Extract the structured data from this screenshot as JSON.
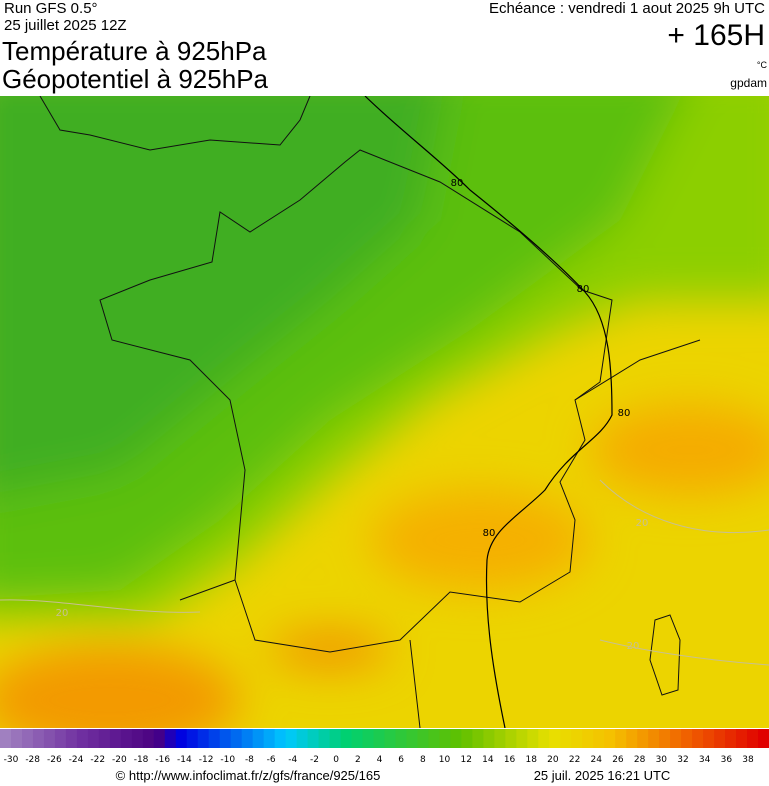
{
  "header": {
    "run": "Run GFS 0.5°",
    "run_date": "25 juillet 2025 12Z",
    "title_line1": "Température à 925hPa",
    "title_line2": "Géopotentiel à 925hPa",
    "valid_time": "Echéance : vendredi 1 aout 2025 9h UTC",
    "lead_time": "+ 165H",
    "unit": "°C",
    "credit": "gpdam"
  },
  "map": {
    "contour_labels": [
      "80",
      "80",
      "80",
      "80"
    ],
    "isotherm_labels": [
      "20",
      "20",
      "20"
    ]
  },
  "colorbar": {
    "labels": [
      -30,
      -28,
      -26,
      -24,
      -22,
      -20,
      -18,
      -16,
      -14,
      -12,
      -10,
      -8,
      -6,
      -4,
      -2,
      0,
      2,
      4,
      6,
      8,
      10,
      12,
      14,
      16,
      18,
      20,
      22,
      24,
      26,
      28,
      30,
      32,
      34,
      36,
      38
    ]
  },
  "footer": {
    "url": "© http://www.infoclimat.fr/z/gfs/france/925/165",
    "timestamp": "25 juil. 2025 16:21 UTC"
  }
}
